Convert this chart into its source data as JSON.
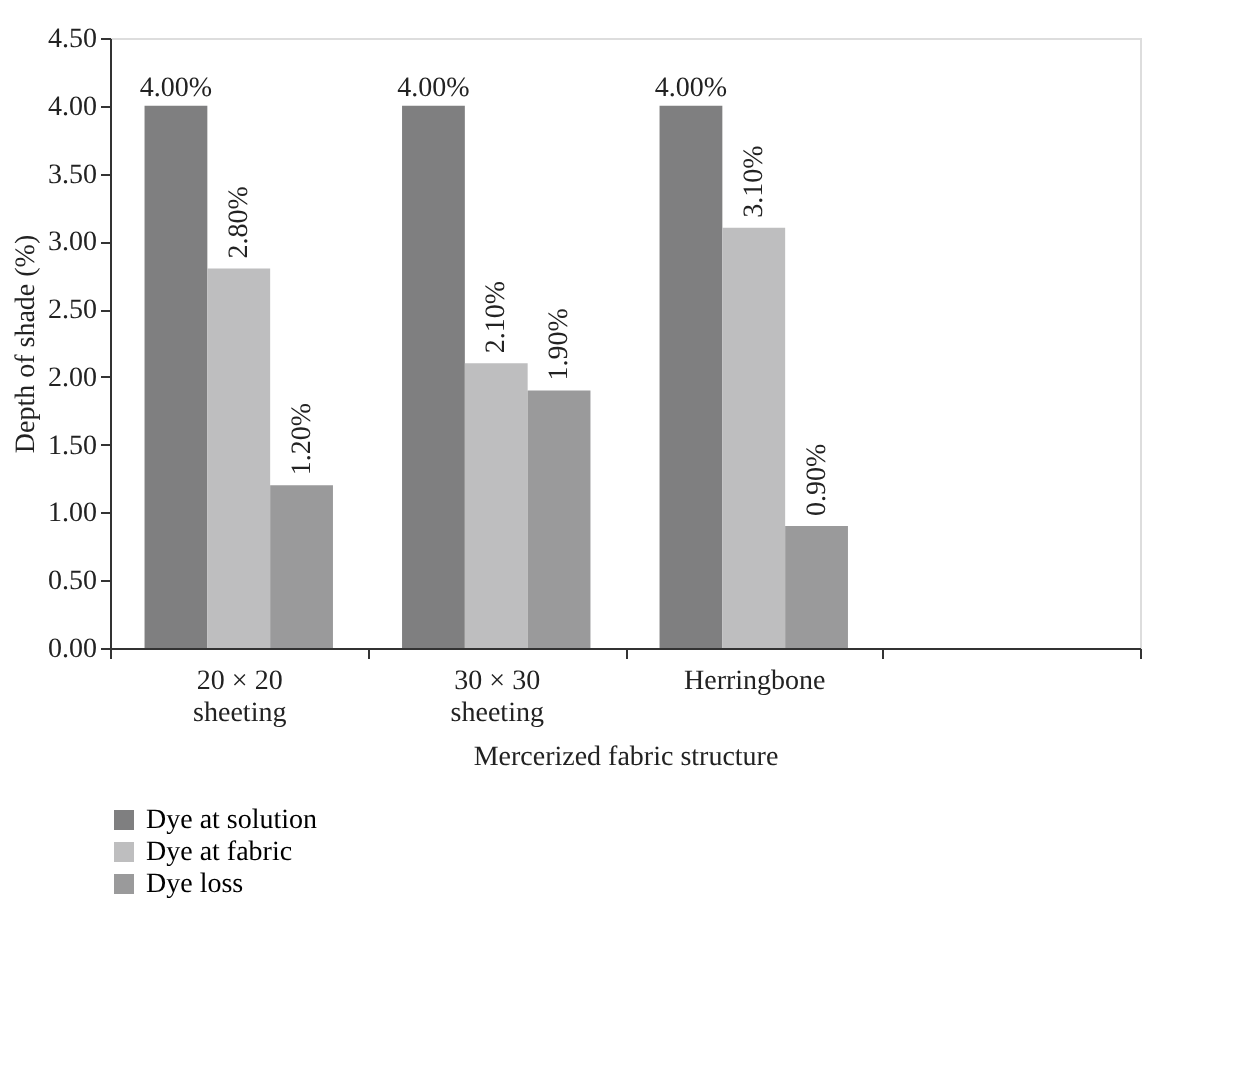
{
  "chart_data": {
    "type": "bar",
    "categories": [
      "20 × 20 sheeting",
      "30 × 30 sheeting",
      "Herringbone",
      null
    ],
    "xlabel": "Mercerized fabric structure",
    "ylabel": "Depth of shade (%)",
    "ylim": [
      0,
      4.5
    ],
    "yticks": [
      {
        "value": 0,
        "label": "0.00"
      },
      {
        "value": 0.5,
        "label": "0.50"
      },
      {
        "value": 1,
        "label": "1.00"
      },
      {
        "value": 1.5,
        "label": "1.50"
      },
      {
        "value": 2,
        "label": "2.00"
      },
      {
        "value": 2.5,
        "label": "2.50"
      },
      {
        "value": 3,
        "label": "3.00"
      },
      {
        "value": 3.5,
        "label": "3.50"
      },
      {
        "value": 4,
        "label": "4.00"
      },
      {
        "value": 4.5,
        "label": "4.50"
      }
    ],
    "series": [
      {
        "name": "Dye at solution",
        "color": "#7f7f80",
        "values": [
          4.0,
          4.0,
          4.0,
          null
        ],
        "value_labels": [
          "4.00%",
          "4.00%",
          "4.00%",
          null
        ]
      },
      {
        "name": "Dye at fabric",
        "color": "#bebebf",
        "values": [
          2.8,
          2.1,
          3.1,
          null
        ],
        "value_labels": [
          "2.80%",
          "2.10%",
          "3.10%",
          null
        ]
      },
      {
        "name": "Dye loss",
        "color": "#9a9a9b",
        "values": [
          1.2,
          1.9,
          0.9,
          null
        ],
        "value_labels": [
          "1.20%",
          "1.90%",
          "0.90%",
          null
        ]
      }
    ],
    "legend": "bottom",
    "grid": false
  }
}
